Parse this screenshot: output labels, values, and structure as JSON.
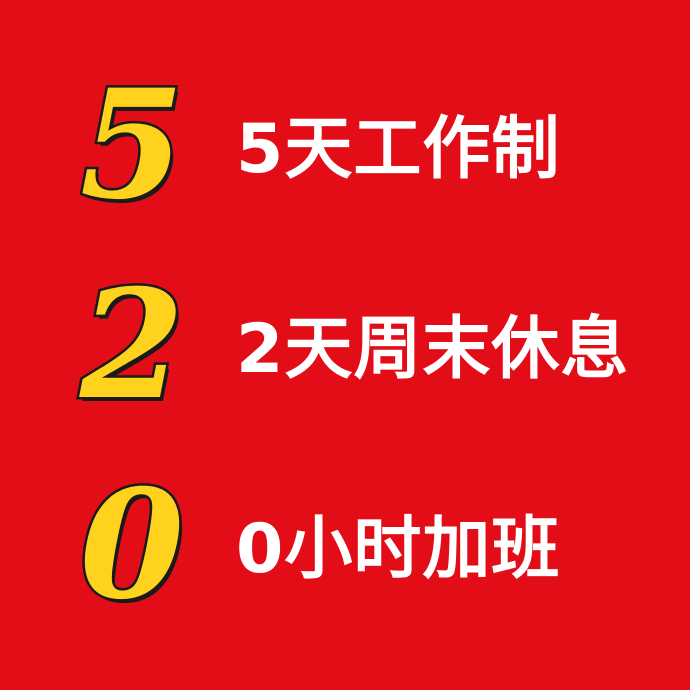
{
  "rows": [
    {
      "digit": "5",
      "caption": "5天工作制"
    },
    {
      "digit": "2",
      "caption": "2天周末休息"
    },
    {
      "digit": "0",
      "caption": "0小时加班"
    }
  ],
  "colors": {
    "background": "#E30D17",
    "digit_fill": "#FFD21E",
    "digit_outline": "#1A1A1A",
    "caption": "#FFFFFF"
  }
}
